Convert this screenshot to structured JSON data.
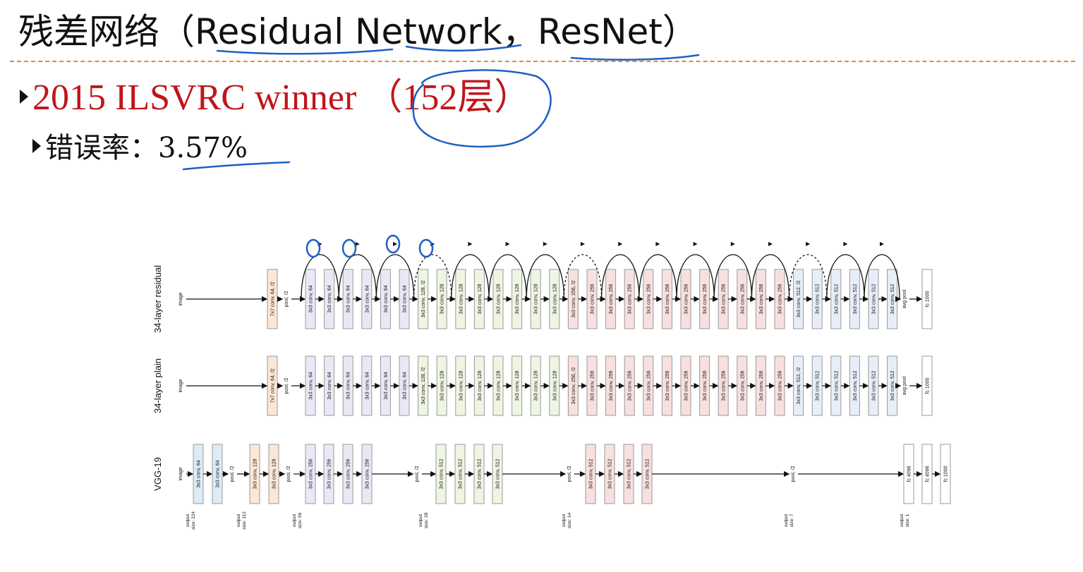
{
  "slide": {
    "title": "残差网络（Residual Network，ResNet）",
    "bullets": [
      {
        "text": "2015 ILSVRC winner （152层）"
      },
      {
        "text": "错误率：3.57%"
      }
    ]
  },
  "diagram": {
    "colors": {
      "conv64": "#ebe8f5",
      "conv128": "#eef5e2",
      "conv256": "#f8e0e0",
      "conv512": "#e8eef8",
      "vgg64": "#dcecf6",
      "vgg128": "#fbe7d6",
      "first": "#fbe7d6",
      "fc": "#ffffff",
      "stroke": "#9a9a9a",
      "annotation": "#1f5fc4"
    },
    "rows": [
      {
        "label": "34-layer residual",
        "input": "image",
        "blocks": [
          {
            "text": "7x7 conv, 64, /2",
            "type": "first"
          },
          {
            "text": "pool, /2",
            "type": "text"
          },
          {
            "text": "3x3 conv, 64",
            "type": "conv64"
          },
          {
            "text": "3x3 conv, 64",
            "type": "conv64"
          },
          {
            "text": "3x3 conv, 64",
            "type": "conv64"
          },
          {
            "text": "3x3 conv, 64",
            "type": "conv64"
          },
          {
            "text": "3x3 conv, 64",
            "type": "conv64"
          },
          {
            "text": "3x3 conv, 64",
            "type": "conv64"
          },
          {
            "text": "3x3 conv, 128, /2",
            "type": "conv128"
          },
          {
            "text": "3x3 conv, 128",
            "type": "conv128"
          },
          {
            "text": "3x3 conv, 128",
            "type": "conv128"
          },
          {
            "text": "3x3 conv, 128",
            "type": "conv128"
          },
          {
            "text": "3x3 conv, 128",
            "type": "conv128"
          },
          {
            "text": "3x3 conv, 128",
            "type": "conv128"
          },
          {
            "text": "3x3 conv, 128",
            "type": "conv128"
          },
          {
            "text": "3x3 conv, 128",
            "type": "conv128"
          },
          {
            "text": "3x3 conv, 256, /2",
            "type": "conv256"
          },
          {
            "text": "3x3 conv, 256",
            "type": "conv256"
          },
          {
            "text": "3x3 conv, 256",
            "type": "conv256"
          },
          {
            "text": "3x3 conv, 256",
            "type": "conv256"
          },
          {
            "text": "3x3 conv, 256",
            "type": "conv256"
          },
          {
            "text": "3x3 conv, 256",
            "type": "conv256"
          },
          {
            "text": "3x3 conv, 256",
            "type": "conv256"
          },
          {
            "text": "3x3 conv, 256",
            "type": "conv256"
          },
          {
            "text": "3x3 conv, 256",
            "type": "conv256"
          },
          {
            "text": "3x3 conv, 256",
            "type": "conv256"
          },
          {
            "text": "3x3 conv, 256",
            "type": "conv256"
          },
          {
            "text": "3x3 conv, 256",
            "type": "conv256"
          },
          {
            "text": "3x3 conv, 512, /2",
            "type": "conv512"
          },
          {
            "text": "3x3 conv, 512",
            "type": "conv512"
          },
          {
            "text": "3x3 conv, 512",
            "type": "conv512"
          },
          {
            "text": "3x3 conv, 512",
            "type": "conv512"
          },
          {
            "text": "3x3 conv, 512",
            "type": "conv512"
          },
          {
            "text": "3x3 conv, 512",
            "type": "conv512"
          },
          {
            "text": "avg pool",
            "type": "text"
          },
          {
            "text": "fc 1000",
            "type": "fc"
          }
        ],
        "skips": [
          {
            "from": 2,
            "to": 4,
            "dashed": false
          },
          {
            "from": 4,
            "to": 6,
            "dashed": false
          },
          {
            "from": 6,
            "to": 8,
            "dashed": false
          },
          {
            "from": 8,
            "to": 10,
            "dashed": true
          },
          {
            "from": 10,
            "to": 12,
            "dashed": false
          },
          {
            "from": 12,
            "to": 14,
            "dashed": false
          },
          {
            "from": 14,
            "to": 16,
            "dashed": false
          },
          {
            "from": 16,
            "to": 18,
            "dashed": true
          },
          {
            "from": 18,
            "to": 20,
            "dashed": false
          },
          {
            "from": 20,
            "to": 22,
            "dashed": false
          },
          {
            "from": 22,
            "to": 24,
            "dashed": false
          },
          {
            "from": 24,
            "to": 26,
            "dashed": false
          },
          {
            "from": 26,
            "to": 28,
            "dashed": false
          },
          {
            "from": 28,
            "to": 30,
            "dashed": true
          },
          {
            "from": 30,
            "to": 32,
            "dashed": false
          },
          {
            "from": 32,
            "to": 34,
            "dashed": false
          }
        ]
      },
      {
        "label": "34-layer plain",
        "input": "image",
        "blocks": [
          {
            "text": "7x7 conv, 64, /2",
            "type": "first"
          },
          {
            "text": "pool, /2",
            "type": "text"
          },
          {
            "text": "3x3 conv, 64",
            "type": "conv64"
          },
          {
            "text": "3x3 conv, 64",
            "type": "conv64"
          },
          {
            "text": "3x3 conv, 64",
            "type": "conv64"
          },
          {
            "text": "3x3 conv, 64",
            "type": "conv64"
          },
          {
            "text": "3x3 conv, 64",
            "type": "conv64"
          },
          {
            "text": "3x3 conv, 64",
            "type": "conv64"
          },
          {
            "text": "3x3 conv, 128, /2",
            "type": "conv128"
          },
          {
            "text": "3x3 conv, 128",
            "type": "conv128"
          },
          {
            "text": "3x3 conv, 128",
            "type": "conv128"
          },
          {
            "text": "3x3 conv, 128",
            "type": "conv128"
          },
          {
            "text": "3x3 conv, 128",
            "type": "conv128"
          },
          {
            "text": "3x3 conv, 128",
            "type": "conv128"
          },
          {
            "text": "3x3 conv, 128",
            "type": "conv128"
          },
          {
            "text": "3x3 conv, 128",
            "type": "conv128"
          },
          {
            "text": "3x3 conv, 256, /2",
            "type": "conv256"
          },
          {
            "text": "3x3 conv, 256",
            "type": "conv256"
          },
          {
            "text": "3x3 conv, 256",
            "type": "conv256"
          },
          {
            "text": "3x3 conv, 256",
            "type": "conv256"
          },
          {
            "text": "3x3 conv, 256",
            "type": "conv256"
          },
          {
            "text": "3x3 conv, 256",
            "type": "conv256"
          },
          {
            "text": "3x3 conv, 256",
            "type": "conv256"
          },
          {
            "text": "3x3 conv, 256",
            "type": "conv256"
          },
          {
            "text": "3x3 conv, 256",
            "type": "conv256"
          },
          {
            "text": "3x3 conv, 256",
            "type": "conv256"
          },
          {
            "text": "3x3 conv, 256",
            "type": "conv256"
          },
          {
            "text": "3x3 conv, 256",
            "type": "conv256"
          },
          {
            "text": "3x3 conv, 512, /2",
            "type": "conv512"
          },
          {
            "text": "3x3 conv, 512",
            "type": "conv512"
          },
          {
            "text": "3x3 conv, 512",
            "type": "conv512"
          },
          {
            "text": "3x3 conv, 512",
            "type": "conv512"
          },
          {
            "text": "3x3 conv, 512",
            "type": "conv512"
          },
          {
            "text": "3x3 conv, 512",
            "type": "conv512"
          },
          {
            "text": "avg pool",
            "type": "text"
          },
          {
            "text": "fc 1000",
            "type": "fc"
          }
        ],
        "skips": []
      },
      {
        "label": "VGG-19",
        "input": "image",
        "blocks": [
          {
            "text": "3x3 conv, 64",
            "type": "vgg64"
          },
          {
            "text": "3x3 conv, 64",
            "type": "vgg64"
          },
          {
            "text": "pool, /2",
            "type": "text"
          },
          {
            "text": "3x3 conv, 128",
            "type": "vgg128"
          },
          {
            "text": "3x3 conv, 128",
            "type": "vgg128"
          },
          {
            "text": "pool, /2",
            "type": "text"
          },
          {
            "text": "3x3 conv, 256",
            "type": "conv64"
          },
          {
            "text": "3x3 conv, 256",
            "type": "conv64"
          },
          {
            "text": "3x3 conv, 256",
            "type": "conv64"
          },
          {
            "text": "3x3 conv, 256",
            "type": "conv64"
          },
          {
            "text": "pool, /2",
            "type": "text"
          },
          {
            "text": "3x3 conv, 512",
            "type": "conv128"
          },
          {
            "text": "3x3 conv, 512",
            "type": "conv128"
          },
          {
            "text": "3x3 conv, 512",
            "type": "conv128"
          },
          {
            "text": "3x3 conv, 512",
            "type": "conv128"
          },
          {
            "text": "pool, /2",
            "type": "text"
          },
          {
            "text": "3x3 conv, 512",
            "type": "conv256"
          },
          {
            "text": "3x3 conv, 512",
            "type": "conv256"
          },
          {
            "text": "3x3 conv, 512",
            "type": "conv256"
          },
          {
            "text": "3x3 conv, 512",
            "type": "conv256"
          },
          {
            "text": "pool, /2",
            "type": "text"
          },
          {
            "text": "fc 4096",
            "type": "fc"
          },
          {
            "text": "fc 4096",
            "type": "fc"
          },
          {
            "text": "fc 1000",
            "type": "fc"
          }
        ],
        "skips": []
      }
    ],
    "output_sizes": [
      "output size: 224",
      "output size: 112",
      "output size: 56",
      "output size: 28",
      "output size: 14",
      "output size: 7",
      "output size: 1"
    ]
  }
}
